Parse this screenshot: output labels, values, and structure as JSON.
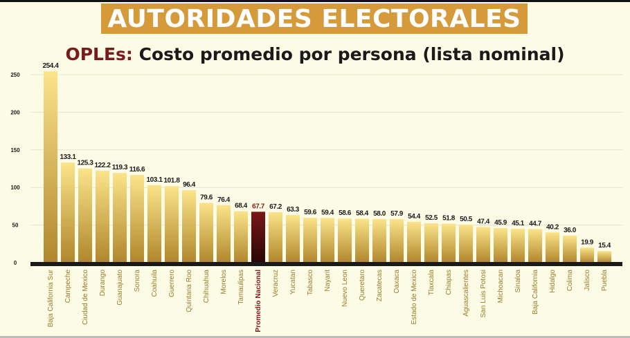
{
  "header": {
    "banner": "AUTORIDADES ELECTORALES",
    "subtitle_highlight": "OPLEs:",
    "subtitle_rest": " Costo promedio por persona (lista nominal)"
  },
  "colors": {
    "banner": "#d59a3a",
    "bar_top": "#fbe48a",
    "bar_bottom": "#b0862c",
    "highlight_top": "#7a1818",
    "highlight_bottom": "#2a0606",
    "highlight_text": "#8a1a1a",
    "axis": "#1a1a1a"
  },
  "chart_data": {
    "type": "bar",
    "title": "OPLEs: Costo promedio por persona (lista nominal)",
    "xlabel": "",
    "ylabel": "",
    "ylim": [
      0,
      250
    ],
    "yticks": [
      0,
      50,
      100,
      150,
      200,
      250
    ],
    "grid": true,
    "highlight": "Promedio Nacional",
    "categories": [
      "Baja California Sur",
      "Campeche",
      "Ciudad de Mexico",
      "Durango",
      "Guanajuato",
      "Sonora",
      "Coahuila",
      "Guerrero",
      "Quintana Roo",
      "Chihuahua",
      "Morelos",
      "Tamaulipas",
      "Promedio Nacional",
      "Veracruz",
      "Yucatan",
      "Tabasco",
      "Nayarit",
      "Nuevo Leon",
      "Queretaro",
      "Zacatecas",
      "Oaxaca",
      "Estado de Mexico",
      "Tlaxcala",
      "Chiapas",
      "Aguascalientes",
      "San Luis Potosi",
      "Michoacan",
      "Sinaloa",
      "Baja California",
      "Hidalgo",
      "Colima",
      "Jalisco",
      "Puebla"
    ],
    "values": [
      254.4,
      133.1,
      125.3,
      122.2,
      119.3,
      116.6,
      103.1,
      101.8,
      96.4,
      79.6,
      76.4,
      68.4,
      67.7,
      67.2,
      63.3,
      59.6,
      59.4,
      58.6,
      58.4,
      58.0,
      57.9,
      54.4,
      52.5,
      51.8,
      50.5,
      47.4,
      45.9,
      45.1,
      44.7,
      40.2,
      36.0,
      19.9,
      15.4
    ],
    "labels": [
      "254.4",
      "133.1",
      "125.3",
      "122.2",
      "119.3",
      "116.6",
      "103.1",
      "101.8",
      "96.4",
      "79.6",
      "76.4",
      "68.4",
      "67.7",
      "67.2",
      "63.3",
      "59.6",
      "59.4",
      "58.6",
      "58.4",
      "58.0",
      "57.9",
      "54.4",
      "52.5",
      "51.8",
      "50.5",
      "47.4",
      "45.9",
      "45.1",
      "44.7",
      "40.2",
      "36.0",
      "19.9",
      "15.4"
    ]
  }
}
